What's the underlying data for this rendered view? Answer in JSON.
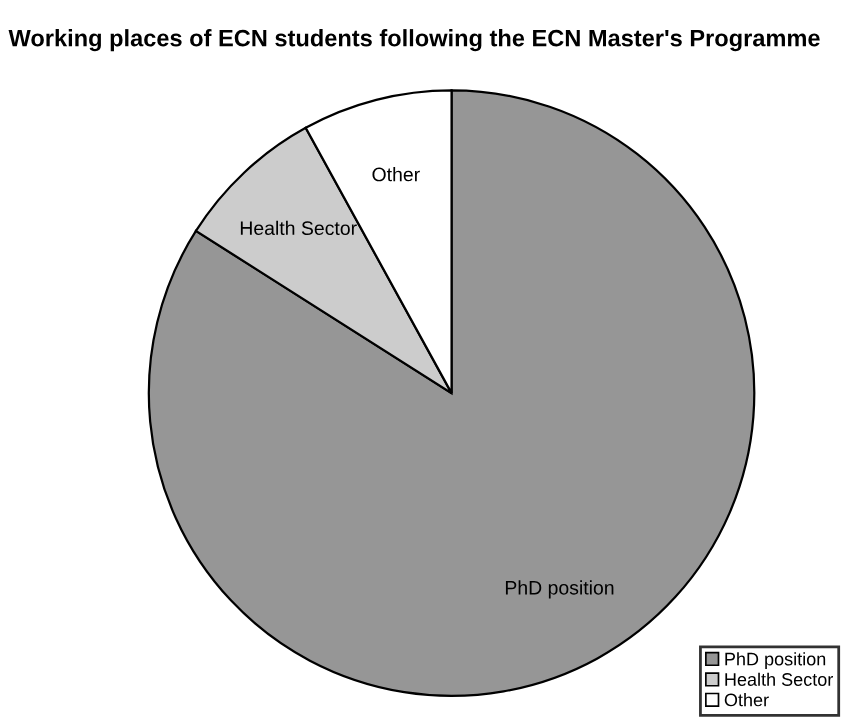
{
  "chart_data": {
    "type": "pie",
    "title": "Working places of ECN students following the ECN Master's Programme",
    "categories": [
      "PhD position",
      "Health Sector",
      "Other"
    ],
    "values": [
      84,
      8,
      8
    ],
    "colors": [
      "#969696",
      "#cccccc",
      "#ffffff"
    ],
    "legend": "bottom right"
  }
}
